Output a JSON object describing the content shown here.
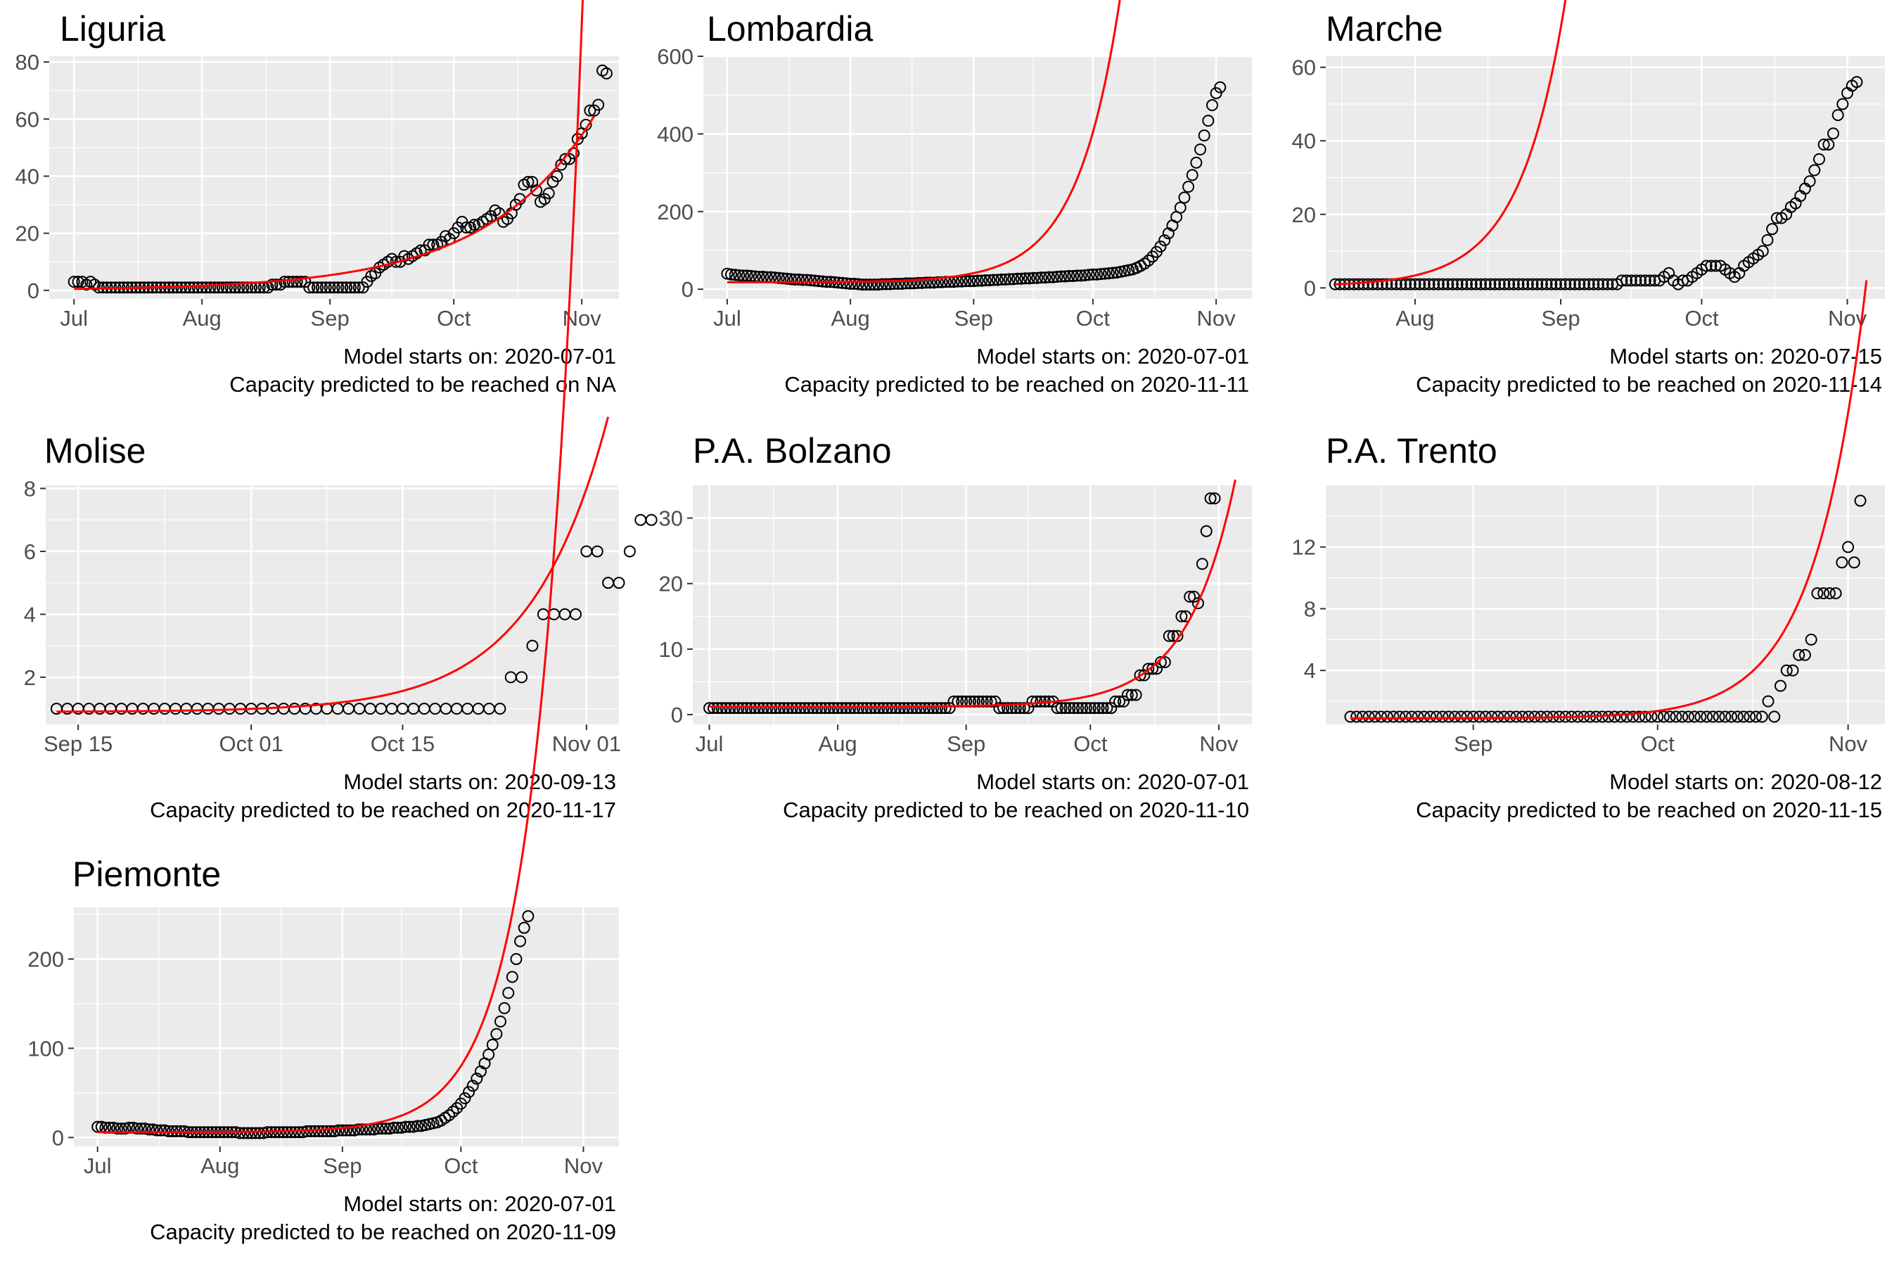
{
  "chart_data": [
    {
      "type": "scatter",
      "title": "Liguria",
      "xlabel": "",
      "ylabel": "",
      "x_range": [
        "2020-06-25",
        "2020-11-10"
      ],
      "ylim": [
        -3,
        82
      ],
      "x_ticks": [
        {
          "date": "2020-07-01",
          "label": "Jul"
        },
        {
          "date": "2020-08-01",
          "label": "Aug"
        },
        {
          "date": "2020-09-01",
          "label": "Sep"
        },
        {
          "date": "2020-10-01",
          "label": "Oct"
        },
        {
          "date": "2020-11-01",
          "label": "Nov"
        }
      ],
      "y_ticks": [
        0,
        20,
        40,
        60,
        80
      ],
      "grid": true,
      "caption": [
        "Model starts on: 2020-07-01",
        "Capacity predicted to be reached on NA"
      ],
      "points": {
        "start": "2020-07-01",
        "values": [
          3,
          3,
          3,
          2,
          3,
          2,
          1,
          1,
          1,
          1,
          1,
          1,
          1,
          1,
          1,
          1,
          1,
          1,
          1,
          1,
          1,
          1,
          1,
          1,
          1,
          1,
          1,
          1,
          1,
          1,
          1,
          1,
          1,
          1,
          1,
          1,
          1,
          1,
          1,
          1,
          1,
          1,
          1,
          1,
          1,
          1,
          1,
          1,
          2,
          2,
          2,
          3,
          3,
          3,
          3,
          3,
          3,
          1,
          1,
          1,
          1,
          1,
          1,
          1,
          1,
          1,
          1,
          1,
          1,
          1,
          1,
          3,
          5,
          6,
          8,
          9,
          10,
          11,
          10,
          10,
          12,
          11,
          12,
          13,
          14,
          14,
          16,
          16,
          16,
          17,
          19,
          18,
          20,
          22,
          24,
          22,
          22,
          23,
          23,
          24,
          25,
          26,
          28,
          27,
          24,
          25,
          27,
          30,
          32,
          37,
          38,
          38,
          35,
          31,
          32,
          34,
          38,
          40,
          44,
          46,
          46,
          48,
          53,
          55,
          58,
          63,
          63,
          65,
          77,
          76
        ]
      },
      "fit": {
        "start": "2020-07-01",
        "end": "2020-11-04",
        "a": 0.5,
        "b": 0.03813,
        "c": 0
      }
    },
    {
      "type": "scatter",
      "title": "Lombardia",
      "xlabel": "",
      "ylabel": "",
      "x_range": [
        "2020-06-25",
        "2020-11-10"
      ],
      "ylim": [
        -25,
        600
      ],
      "x_ticks": [
        {
          "date": "2020-07-01",
          "label": "Jul"
        },
        {
          "date": "2020-08-01",
          "label": "Aug"
        },
        {
          "date": "2020-09-01",
          "label": "Sep"
        },
        {
          "date": "2020-10-01",
          "label": "Oct"
        },
        {
          "date": "2020-11-01",
          "label": "Nov"
        }
      ],
      "y_ticks": [
        0,
        200,
        400,
        600
      ],
      "grid": true,
      "caption": [
        "Model starts on: 2020-07-01",
        "Capacity predicted to be reached on 2020-11-11"
      ],
      "points": {
        "start": "2020-07-01",
        "values": [
          40,
          38,
          37,
          36,
          35,
          35,
          34,
          33,
          32,
          32,
          31,
          31,
          30,
          29,
          28,
          27,
          26,
          25,
          25,
          24,
          24,
          23,
          22,
          21,
          20,
          19,
          19,
          18,
          17,
          16,
          15,
          14,
          14,
          13,
          12,
          12,
          12,
          12,
          12,
          13,
          13,
          13,
          14,
          14,
          14,
          15,
          15,
          15,
          16,
          16,
          17,
          17,
          17,
          18,
          18,
          19,
          19,
          19,
          20,
          20,
          21,
          21,
          21,
          22,
          22,
          23,
          23,
          24,
          24,
          25,
          25,
          26,
          26,
          27,
          27,
          28,
          28,
          29,
          29,
          30,
          30,
          31,
          31,
          32,
          33,
          33,
          34,
          34,
          35,
          35,
          36,
          37,
          38,
          38,
          39,
          40,
          41,
          42,
          43,
          45,
          47,
          49,
          51,
          55,
          60,
          66,
          74,
          84,
          96,
          110,
          126,
          144,
          164,
          186,
          210,
          236,
          264,
          294,
          326,
          360,
          396,
          434,
          474,
          505,
          520
        ]
      },
      "fit": {
        "start": "2020-07-01",
        "end": "2020-11-05",
        "a": 0.071,
        "b": 0.0935,
        "c": 18
      }
    },
    {
      "type": "scatter",
      "title": "Marche",
      "xlabel": "",
      "ylabel": "",
      "x_range": [
        "2020-07-13",
        "2020-11-09"
      ],
      "ylim": [
        -3,
        63
      ],
      "x_ticks": [
        {
          "date": "2020-08-01",
          "label": "Aug"
        },
        {
          "date": "2020-09-01",
          "label": "Sep"
        },
        {
          "date": "2020-10-01",
          "label": "Oct"
        },
        {
          "date": "2020-11-01",
          "label": "Nov"
        }
      ],
      "y_ticks": [
        0,
        20,
        40,
        60
      ],
      "grid": true,
      "caption": [
        "Model starts on: 2020-07-15",
        "Capacity predicted to be reached on 2020-11-14"
      ],
      "points": {
        "start": "2020-07-15",
        "values": [
          1,
          1,
          1,
          1,
          1,
          1,
          1,
          1,
          1,
          1,
          1,
          1,
          1,
          1,
          1,
          1,
          1,
          1,
          1,
          1,
          1,
          1,
          1,
          1,
          1,
          1,
          1,
          1,
          1,
          1,
          1,
          1,
          1,
          1,
          1,
          1,
          1,
          1,
          1,
          1,
          1,
          1,
          1,
          1,
          1,
          1,
          1,
          1,
          1,
          1,
          1,
          1,
          1,
          1,
          1,
          1,
          1,
          1,
          1,
          1,
          1,
          2,
          2,
          2,
          2,
          2,
          2,
          2,
          2,
          2,
          3,
          4,
          2,
          1,
          2,
          2,
          3,
          4,
          5,
          6,
          6,
          6,
          6,
          5,
          4,
          3,
          4,
          6,
          7,
          8,
          9,
          10,
          13,
          16,
          19,
          19,
          20,
          22,
          23,
          25,
          27,
          29,
          32,
          35,
          39,
          39,
          42,
          47,
          50,
          53,
          55,
          56
        ]
      },
      "fit": {
        "start": "2020-07-15",
        "end": "2020-11-05",
        "a": 0.5,
        "b": 0.103,
        "c": 0.5
      }
    },
    {
      "type": "scatter",
      "title": "Molise",
      "xlabel": "",
      "ylabel": "",
      "x_range": [
        "2020-09-12",
        "2020-11-04"
      ],
      "ylim": [
        0.5,
        8.1
      ],
      "x_ticks": [
        {
          "date": "2020-09-15",
          "label": "Sep 15"
        },
        {
          "date": "2020-10-01",
          "label": "Oct 01"
        },
        {
          "date": "2020-10-15",
          "label": "Oct 15"
        },
        {
          "date": "2020-11-01",
          "label": "Nov 01"
        }
      ],
      "y_ticks": [
        2,
        4,
        6,
        8
      ],
      "grid": true,
      "caption": [
        "Model starts on: 2020-09-13",
        "Capacity predicted to be reached on 2020-11-17"
      ],
      "points": {
        "start": "2020-09-13",
        "values": [
          1,
          1,
          1,
          1,
          1,
          1,
          1,
          1,
          1,
          1,
          1,
          1,
          1,
          1,
          1,
          1,
          1,
          1,
          1,
          1,
          1,
          1,
          1,
          1,
          1,
          1,
          1,
          1,
          1,
          1,
          1,
          1,
          1,
          1,
          1,
          1,
          1,
          1,
          1,
          1,
          1,
          1,
          2,
          2,
          3,
          4,
          4,
          4,
          4,
          6,
          6,
          5,
          5,
          6,
          7,
          7
        ]
      },
      "fit": {
        "start": "2020-09-13",
        "end": "2020-11-03",
        "a": 0.0077,
        "b": 0.1393,
        "c": 0.9
      }
    },
    {
      "type": "scatter",
      "title": "P.A. Bolzano",
      "xlabel": "",
      "ylabel": "",
      "x_range": [
        "2020-06-27",
        "2020-11-09"
      ],
      "ylim": [
        -1.5,
        35
      ],
      "x_ticks": [
        {
          "date": "2020-07-01",
          "label": "Jul"
        },
        {
          "date": "2020-08-01",
          "label": "Aug"
        },
        {
          "date": "2020-09-01",
          "label": "Sep"
        },
        {
          "date": "2020-10-01",
          "label": "Oct"
        },
        {
          "date": "2020-11-01",
          "label": "Nov"
        }
      ],
      "y_ticks": [
        0,
        10,
        20,
        30
      ],
      "grid": true,
      "caption": [
        "Model starts on: 2020-07-01",
        "Capacity predicted to be reached on 2020-11-10"
      ],
      "points": {
        "start": "2020-07-01",
        "values": [
          1,
          1,
          1,
          1,
          1,
          1,
          1,
          1,
          1,
          1,
          1,
          1,
          1,
          1,
          1,
          1,
          1,
          1,
          1,
          1,
          1,
          1,
          1,
          1,
          1,
          1,
          1,
          1,
          1,
          1,
          1,
          1,
          1,
          1,
          1,
          1,
          1,
          1,
          1,
          1,
          1,
          1,
          1,
          1,
          1,
          1,
          1,
          1,
          1,
          1,
          1,
          1,
          1,
          1,
          1,
          1,
          1,
          1,
          1,
          2,
          2,
          2,
          2,
          2,
          2,
          2,
          2,
          2,
          2,
          2,
          1,
          1,
          1,
          1,
          1,
          1,
          1,
          1,
          2,
          2,
          2,
          2,
          2,
          2,
          1,
          1,
          1,
          1,
          1,
          1,
          1,
          1,
          1,
          1,
          1,
          1,
          1,
          1,
          2,
          2,
          2,
          3,
          3,
          3,
          6,
          6,
          7,
          7,
          7,
          8,
          8,
          12,
          12,
          12,
          15,
          15,
          18,
          18,
          17,
          23,
          28,
          33,
          33
        ]
      },
      "fit": {
        "start": "2020-07-01",
        "end": "2020-11-05",
        "a": 0.00058,
        "b": 0.0866,
        "c": 1.2
      }
    },
    {
      "type": "scatter",
      "title": "P.A. Trento",
      "xlabel": "",
      "ylabel": "",
      "x_range": [
        "2020-08-08",
        "2020-11-07"
      ],
      "ylim": [
        0.5,
        16
      ],
      "x_ticks": [
        {
          "date": "2020-09-01",
          "label": "Sep"
        },
        {
          "date": "2020-10-01",
          "label": "Oct"
        },
        {
          "date": "2020-11-01",
          "label": "Nov"
        }
      ],
      "y_ticks": [
        4,
        8,
        12
      ],
      "grid": true,
      "caption": [
        "Model starts on: 2020-08-12",
        "Capacity predicted to be reached on 2020-11-15"
      ],
      "points": {
        "start": "2020-08-12",
        "values": [
          1,
          1,
          1,
          1,
          1,
          1,
          1,
          1,
          1,
          1,
          1,
          1,
          1,
          1,
          1,
          1,
          1,
          1,
          1,
          1,
          1,
          1,
          1,
          1,
          1,
          1,
          1,
          1,
          1,
          1,
          1,
          1,
          1,
          1,
          1,
          1,
          1,
          1,
          1,
          1,
          1,
          1,
          1,
          1,
          1,
          1,
          1,
          1,
          1,
          1,
          1,
          1,
          1,
          1,
          1,
          1,
          1,
          1,
          1,
          1,
          1,
          1,
          1,
          1,
          1,
          1,
          1,
          1,
          2,
          1,
          3,
          4,
          4,
          5,
          5,
          6,
          9,
          9,
          9,
          9,
          11,
          12,
          11,
          15
        ]
      },
      "fit": {
        "start": "2020-08-12",
        "end": "2020-11-04",
        "a": 0.00116,
        "b": 0.1203,
        "c": 0.9
      }
    },
    {
      "type": "scatter",
      "title": "Piemonte",
      "xlabel": "",
      "ylabel": "",
      "x_range": [
        "2020-06-25",
        "2020-11-10"
      ],
      "ylim": [
        -10,
        258
      ],
      "x_ticks": [
        {
          "date": "2020-07-01",
          "label": "Jul"
        },
        {
          "date": "2020-08-01",
          "label": "Aug"
        },
        {
          "date": "2020-09-01",
          "label": "Sep"
        },
        {
          "date": "2020-10-01",
          "label": "Oct"
        },
        {
          "date": "2020-11-01",
          "label": "Nov"
        }
      ],
      "y_ticks": [
        0,
        100,
        200
      ],
      "grid": true,
      "caption": [
        "Model starts on: 2020-07-01",
        "Capacity predicted to be reached on 2020-11-09"
      ],
      "points": {
        "start": "2020-07-01",
        "values": [
          12,
          12,
          11,
          11,
          11,
          10,
          10,
          10,
          11,
          11,
          10,
          10,
          10,
          9,
          9,
          8,
          8,
          8,
          7,
          7,
          7,
          7,
          7,
          6,
          6,
          6,
          6,
          6,
          6,
          6,
          6,
          6,
          6,
          6,
          6,
          6,
          5,
          5,
          5,
          5,
          5,
          5,
          5,
          6,
          6,
          6,
          6,
          6,
          6,
          6,
          6,
          6,
          6,
          7,
          7,
          7,
          7,
          7,
          7,
          7,
          7,
          8,
          8,
          8,
          8,
          8,
          9,
          9,
          9,
          9,
          9,
          10,
          10,
          10,
          10,
          11,
          11,
          11,
          12,
          12,
          12,
          13,
          13,
          14,
          15,
          16,
          17,
          19,
          22,
          25,
          29,
          33,
          38,
          44,
          51,
          58,
          66,
          74,
          83,
          93,
          104,
          116,
          130,
          145,
          162,
          180,
          200,
          220,
          235,
          248
        ]
      },
      "fit": {
        "start": "2020-07-01",
        "end": "2020-11-05",
        "a": 0.0155,
        "b": 0.0921,
        "c": 6
      }
    }
  ],
  "style": {
    "panel_background": "#ebebeb",
    "gridline_color": "#ffffff",
    "point_stroke": "#000000",
    "fit_line_color": "#ff0000",
    "tick_color": "#333333",
    "tick_label_color": "#4d4d4d"
  }
}
